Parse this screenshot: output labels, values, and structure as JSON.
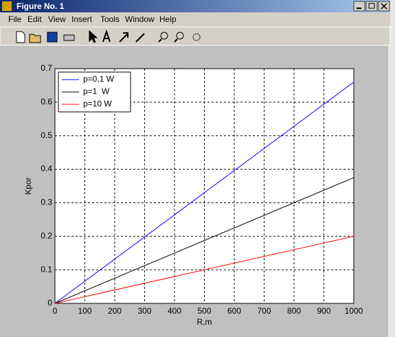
{
  "window": {
    "title": "Figure No. 1",
    "menu": [
      "File",
      "Edit",
      "View",
      "Insert",
      "Tools",
      "Window",
      "Help"
    ]
  },
  "chart_data": {
    "type": "line",
    "xlabel": "R,m",
    "ylabel": "Kpor",
    "x": [
      0,
      1000
    ],
    "series": [
      {
        "name": "p=0,1 W",
        "color": "#0000ff",
        "values": [
          0,
          0.66
        ]
      },
      {
        "name": "p=1  W",
        "color": "#000000",
        "values": [
          0,
          0.375
        ]
      },
      {
        "name": "p=10 W",
        "color": "#ff0000",
        "values": [
          0,
          0.2
        ]
      }
    ],
    "xlim": [
      0,
      1000
    ],
    "ylim": [
      0,
      0.7
    ],
    "xticks": [
      0,
      100,
      200,
      300,
      400,
      500,
      600,
      700,
      800,
      900,
      1000
    ],
    "yticks": [
      0,
      0.1,
      0.2,
      0.3,
      0.4,
      0.5,
      0.6,
      0.7
    ],
    "grid": true,
    "legend": "upper left"
  }
}
